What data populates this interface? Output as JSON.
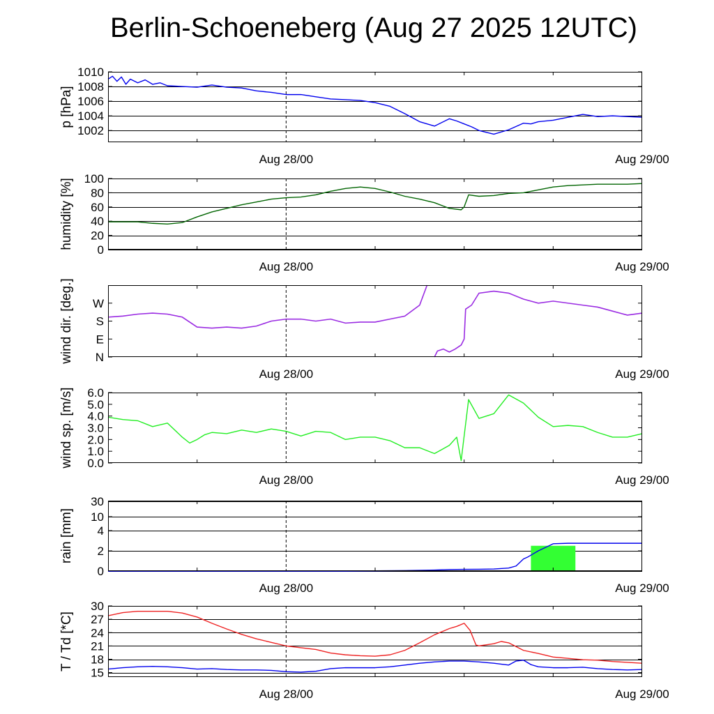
{
  "title": "Berlin-Schoeneberg (Aug 27 2025 12UTC)",
  "x_tick_labels": [
    "Aug 28/00",
    "Aug 29/00"
  ],
  "chart_data": [
    {
      "type": "line",
      "ylabel": "p [hPa]",
      "ylim": [
        1000.4,
        1010
      ],
      "grid": true,
      "x_unit": "hours since Aug 27 12UTC",
      "xlim": [
        0,
        36
      ],
      "tick_labels": [
        "1010",
        "1008",
        "1006",
        "1004",
        "1002"
      ],
      "tick_values": [
        1010,
        1008,
        1006,
        1004,
        1002
      ],
      "series": [
        {
          "color": "#0000ee",
          "x": [
            0,
            0.3,
            0.6,
            0.9,
            1.2,
            1.5,
            2,
            2.5,
            3,
            3.5,
            4,
            5,
            6,
            7,
            8,
            9,
            10,
            11,
            12,
            13,
            14,
            15,
            16,
            17,
            18,
            19,
            20,
            21,
            22,
            23,
            23.5,
            24,
            24.5,
            25,
            26,
            27,
            28,
            28.5,
            29,
            30,
            31,
            32,
            33,
            34,
            35,
            36
          ],
          "y": [
            1009,
            1009.4,
            1008.7,
            1009.3,
            1008.3,
            1009,
            1008.5,
            1008.9,
            1008.3,
            1008.5,
            1008.1,
            1008,
            1007.9,
            1008.2,
            1007.9,
            1007.8,
            1007.4,
            1007.2,
            1006.9,
            1006.9,
            1006.6,
            1006.3,
            1006.2,
            1006.1,
            1005.8,
            1005.3,
            1004.3,
            1003.2,
            1002.6,
            1003.6,
            1003.3,
            1002.9,
            1002.5,
            1002,
            1001.5,
            1002.1,
            1003,
            1002.9,
            1003.2,
            1003.4,
            1003.8,
            1004.2,
            1003.9,
            1004,
            1003.9,
            1003.8
          ]
        }
      ]
    },
    {
      "type": "line",
      "ylabel": "humidity [%]",
      "ylim": [
        0,
        100
      ],
      "grid": true,
      "x_unit": "hours since Aug 27 12UTC",
      "xlim": [
        0,
        36
      ],
      "tick_labels": [
        "100",
        "80",
        "60",
        "40",
        "20",
        "0"
      ],
      "tick_values": [
        100,
        80,
        60,
        40,
        20,
        0
      ],
      "series": [
        {
          "color": "#006400",
          "x": [
            0,
            2,
            3,
            4,
            5,
            6,
            7,
            8,
            9,
            10,
            11,
            12,
            13,
            14,
            15,
            16,
            17,
            18,
            19,
            20,
            21,
            22,
            23,
            23.8,
            24,
            24.3,
            25,
            26,
            27,
            28,
            29,
            30,
            31,
            32,
            33,
            34,
            35,
            36
          ],
          "y": [
            39,
            39,
            37,
            36,
            38,
            46,
            53,
            58,
            63,
            67,
            71,
            73,
            74,
            77,
            82,
            86,
            88,
            86,
            81,
            75,
            71,
            66,
            58,
            56,
            60,
            77,
            75,
            76,
            79,
            80,
            84,
            88,
            90,
            91,
            92,
            92,
            92,
            93
          ]
        }
      ]
    },
    {
      "type": "scatter",
      "ylabel": "wind dir. [deg.]",
      "ylim": [
        0,
        360
      ],
      "grid": false,
      "x_unit": "hours since Aug 27 12UTC",
      "xlim": [
        0,
        36
      ],
      "tick_labels": [
        "W",
        "S",
        "E",
        "N"
      ],
      "tick_values": [
        270,
        180,
        90,
        0
      ],
      "series": [
        {
          "color": "#9a2be2",
          "x": [
            0,
            1,
            2,
            3,
            4,
            5,
            6,
            7,
            8,
            9,
            10,
            11,
            12,
            13,
            14,
            15,
            16,
            17,
            18,
            19,
            20,
            21,
            21.5,
            22,
            22.2,
            22.6,
            23,
            23.4,
            23.8,
            24,
            24.1,
            24.5,
            25,
            26,
            27,
            28,
            29,
            30,
            31,
            32,
            33,
            34,
            35,
            36
          ],
          "y": [
            200,
            205,
            215,
            220,
            215,
            200,
            150,
            145,
            150,
            145,
            155,
            180,
            190,
            190,
            180,
            190,
            170,
            175,
            175,
            190,
            205,
            260,
            360,
            0,
            30,
            40,
            25,
            40,
            60,
            90,
            240,
            260,
            320,
            330,
            320,
            290,
            270,
            280,
            270,
            260,
            250,
            230,
            210,
            220
          ]
        }
      ]
    },
    {
      "type": "line",
      "ylabel": "wind sp. [m/s]",
      "ylim": [
        0,
        6
      ],
      "grid": false,
      "x_unit": "hours since Aug 27 12UTC",
      "xlim": [
        0,
        36
      ],
      "tick_labels": [
        "6.0",
        "5.0",
        "4.0",
        "3.0",
        "2.0",
        "1.0",
        "0.0"
      ],
      "tick_values": [
        6,
        5,
        4,
        3,
        2,
        1,
        0
      ],
      "series": [
        {
          "color": "#22ee22",
          "x": [
            0,
            1,
            2,
            3,
            4,
            5,
            5.5,
            6,
            6.5,
            7,
            8,
            9,
            10,
            11,
            12,
            13,
            14,
            15,
            16,
            17,
            18,
            19,
            20,
            21,
            22,
            23,
            23.5,
            23.8,
            24,
            24.3,
            25,
            26,
            27,
            28,
            29,
            30,
            31,
            32,
            33,
            34,
            35,
            36
          ],
          "y": [
            3.9,
            3.7,
            3.6,
            3.1,
            3.4,
            2.2,
            1.7,
            2,
            2.4,
            2.6,
            2.5,
            2.8,
            2.6,
            2.9,
            2.7,
            2.3,
            2.7,
            2.6,
            2,
            2.2,
            2.2,
            1.9,
            1.3,
            1.3,
            0.8,
            1.5,
            2.2,
            0.2,
            2.3,
            5.4,
            3.8,
            4.2,
            5.8,
            5.1,
            3.9,
            3.1,
            3.2,
            3.1,
            2.6,
            2.2,
            2.2,
            2.5
          ]
        }
      ]
    },
    {
      "type": "bar",
      "ylabel": "rain [mm]",
      "ylim": [
        0,
        30
      ],
      "grid": true,
      "x_unit": "hours since Aug 27 12UTC",
      "xlim": [
        0,
        36
      ],
      "tick_labels": [
        "30",
        "10",
        "4",
        "2",
        "0"
      ],
      "tick_values": [
        30,
        10,
        4,
        2,
        0
      ],
      "bars": [
        {
          "color": "#33ff33",
          "x0": 28.5,
          "x1": 31.5,
          "value": 2.5
        }
      ],
      "series": [
        {
          "color": "#0000ee",
          "x": [
            0,
            16,
            20,
            22,
            23,
            24,
            25,
            26,
            27,
            27.5,
            28,
            28.3,
            29,
            30,
            31,
            32,
            33,
            34,
            35,
            36
          ],
          "y": [
            0,
            0,
            0.05,
            0.1,
            0.15,
            0.17,
            0.18,
            0.2,
            0.3,
            0.5,
            1.2,
            1.4,
            2,
            2.7,
            2.75,
            2.75,
            2.75,
            2.75,
            2.75,
            2.75
          ]
        }
      ]
    },
    {
      "type": "line",
      "ylabel": "T / Td [*C]",
      "ylim": [
        14,
        30
      ],
      "grid": true,
      "x_unit": "hours since Aug 27 12UTC",
      "xlim": [
        0,
        36
      ],
      "tick_labels": [
        "30",
        "27",
        "24",
        "21",
        "18",
        "15"
      ],
      "tick_values": [
        30,
        27,
        24,
        21,
        18,
        15
      ],
      "series": [
        {
          "color": "#ee2222",
          "x": [
            0,
            1,
            2,
            3,
            4,
            5,
            6,
            7,
            8,
            9,
            10,
            11,
            12,
            13,
            14,
            15,
            16,
            17,
            18,
            19,
            20,
            21,
            22,
            23,
            23.5,
            24,
            24.4,
            24.8,
            25,
            26,
            26.5,
            27,
            28,
            29,
            30,
            31,
            32,
            33,
            34,
            35,
            36
          ],
          "y": [
            27.8,
            28.5,
            28.8,
            28.8,
            28.8,
            28.4,
            27.5,
            26.1,
            24.8,
            23.6,
            22.6,
            21.8,
            21,
            20.6,
            20.2,
            19.4,
            19,
            18.8,
            18.7,
            19,
            20,
            21.7,
            23.5,
            24.9,
            25.4,
            26.1,
            24.5,
            21.2,
            21,
            21.5,
            22,
            21.7,
            20,
            19.3,
            18.5,
            18.2,
            17.9,
            17.8,
            17.5,
            17.3,
            17.1
          ]
        },
        {
          "color": "#0000ee",
          "x": [
            0,
            1,
            2,
            3,
            4,
            5,
            6,
            7,
            8,
            9,
            10,
            11,
            12,
            13,
            14,
            15,
            16,
            17,
            18,
            19,
            20,
            21,
            22,
            23,
            24,
            25,
            26,
            27,
            27.5,
            28,
            28.5,
            29,
            30,
            31,
            32,
            33,
            34,
            35,
            36
          ],
          "y": [
            15.8,
            16.1,
            16.3,
            16.4,
            16.3,
            16.1,
            15.8,
            15.9,
            15.7,
            15.6,
            15.6,
            15.5,
            15.2,
            15.1,
            15.3,
            15.9,
            16.1,
            16.1,
            16.1,
            16.3,
            16.7,
            17.1,
            17.4,
            17.6,
            17.6,
            17.4,
            17.1,
            16.7,
            17.6,
            17.8,
            16.8,
            16.3,
            16.1,
            16.1,
            16.2,
            15.9,
            15.7,
            15.6,
            15.7
          ]
        }
      ]
    }
  ]
}
